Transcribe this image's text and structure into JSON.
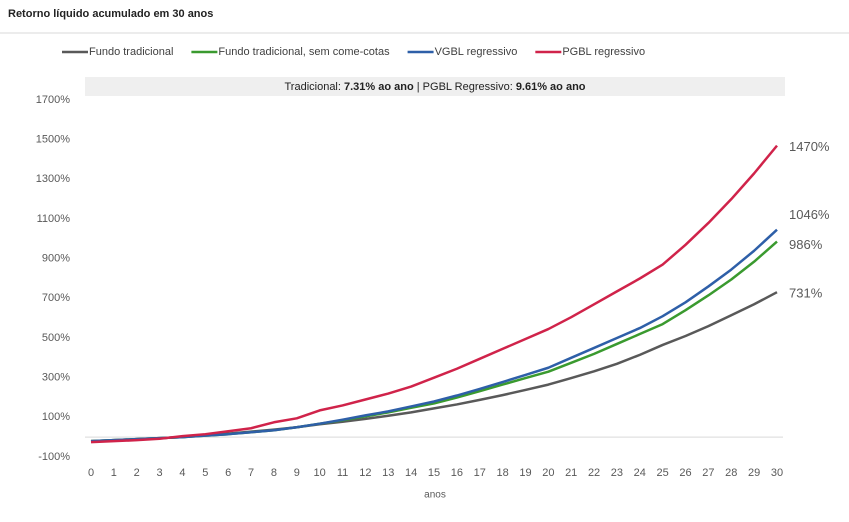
{
  "chart_data": {
    "type": "line",
    "title": "Retorno líquido acumulado em 30 anos",
    "annotation": [
      "Tradicional: ",
      "7.31% ao ano",
      " | PGBL Regressivo: ",
      "9.61% ao ano"
    ],
    "xlabel": "anos",
    "x": [
      0,
      1,
      2,
      3,
      4,
      5,
      6,
      7,
      8,
      9,
      10,
      11,
      12,
      13,
      14,
      15,
      16,
      17,
      18,
      19,
      20,
      21,
      22,
      23,
      24,
      25,
      26,
      27,
      28,
      29,
      30
    ],
    "xlim": [
      0,
      30
    ],
    "xticks": [
      0,
      1,
      2,
      3,
      4,
      5,
      6,
      7,
      8,
      9,
      10,
      11,
      12,
      13,
      14,
      15,
      16,
      17,
      18,
      19,
      20,
      21,
      22,
      23,
      24,
      25,
      26,
      27,
      28,
      29,
      30
    ],
    "ylim": [
      -100,
      1700
    ],
    "yticks": [
      {
        "value": -100,
        "label": "-100%"
      },
      {
        "value": 100,
        "label": "100%"
      },
      {
        "value": 300,
        "label": "300%"
      },
      {
        "value": 500,
        "label": "500%"
      },
      {
        "value": 700,
        "label": "700%"
      },
      {
        "value": 900,
        "label": "900%"
      },
      {
        "value": 1100,
        "label": "1100%"
      },
      {
        "value": 1300,
        "label": "1300%"
      },
      {
        "value": 1500,
        "label": "1500%"
      },
      {
        "value": 1700,
        "label": "1700%"
      }
    ],
    "legend": "top",
    "series": [
      {
        "name": "Fundo tradicional",
        "color": "#595959",
        "values": [
          -20,
          -15,
          -10,
          -5,
          0,
          10,
          18,
          28,
          38,
          50,
          65,
          78,
          92,
          108,
          125,
          145,
          165,
          188,
          212,
          238,
          265,
          298,
          332,
          370,
          415,
          465,
          510,
          560,
          615,
          670,
          731
        ],
        "value_labels": [
          null,
          null,
          null,
          null,
          null,
          null,
          null,
          null,
          null,
          null,
          null,
          null,
          null,
          null,
          null,
          null,
          null,
          null,
          null,
          null,
          null,
          null,
          null,
          null,
          null,
          null,
          null,
          null,
          null,
          null,
          "731%"
        ]
      },
      {
        "name": "Fundo tradicional, sem come-cotas",
        "color": "#3a9a2f",
        "values": [
          -20,
          -15,
          -10,
          -5,
          0,
          8,
          15,
          25,
          35,
          50,
          68,
          85,
          105,
          125,
          148,
          170,
          200,
          232,
          265,
          298,
          330,
          375,
          420,
          470,
          520,
          570,
          640,
          715,
          795,
          885,
          986
        ],
        "value_labels": [
          null,
          null,
          null,
          null,
          null,
          null,
          null,
          null,
          null,
          null,
          null,
          null,
          null,
          null,
          null,
          null,
          null,
          null,
          null,
          null,
          null,
          null,
          null,
          null,
          null,
          null,
          null,
          null,
          null,
          null,
          "986%"
        ]
      },
      {
        "name": "VGBL regressivo",
        "color": "#2e5fa8",
        "values": [
          -20,
          -15,
          -10,
          -5,
          0,
          8,
          15,
          25,
          35,
          50,
          68,
          88,
          110,
          130,
          155,
          180,
          210,
          243,
          278,
          314,
          350,
          400,
          450,
          500,
          550,
          610,
          680,
          760,
          845,
          940,
          1046
        ],
        "value_labels": [
          null,
          null,
          null,
          null,
          null,
          null,
          null,
          null,
          null,
          null,
          null,
          null,
          null,
          null,
          null,
          null,
          null,
          null,
          null,
          null,
          null,
          null,
          null,
          null,
          null,
          null,
          null,
          null,
          null,
          null,
          "1046%"
        ]
      },
      {
        "name": "PGBL regressivo",
        "color": "#d0234a",
        "values": [
          -25,
          -20,
          -15,
          -8,
          5,
          15,
          30,
          45,
          75,
          95,
          135,
          160,
          190,
          220,
          255,
          300,
          345,
          395,
          445,
          495,
          545,
          605,
          670,
          735,
          800,
          870,
          970,
          1080,
          1200,
          1330,
          1470
        ],
        "value_labels": [
          null,
          null,
          null,
          null,
          null,
          null,
          null,
          null,
          null,
          null,
          null,
          null,
          null,
          null,
          null,
          null,
          null,
          null,
          null,
          null,
          null,
          null,
          null,
          null,
          null,
          null,
          null,
          null,
          null,
          null,
          "1470%"
        ]
      }
    ]
  }
}
